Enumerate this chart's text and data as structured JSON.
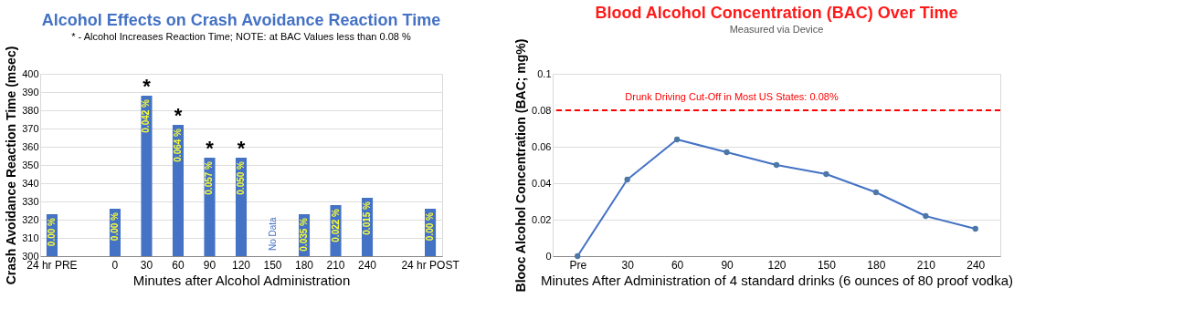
{
  "chart_data": [
    {
      "type": "bar",
      "title": "Alcohol Effects on Crash Avoidance Reaction Time",
      "subtitle": "* - Alcohol Increases Reaction Time; NOTE:  at BAC Values less than 0.08 %",
      "xlabel": "Minutes after Alcohol Administration",
      "ylabel": "Crash Avoidance Reaction Time (msec)",
      "categories": [
        "24 hr PRE",
        null,
        "0",
        "30",
        "60",
        "90",
        "120",
        "150",
        "180",
        "210",
        "240",
        null,
        "24 hr POST"
      ],
      "values": [
        323,
        null,
        326,
        388,
        372,
        354,
        354,
        null,
        323,
        328,
        332,
        null,
        326
      ],
      "color": "#4472c4",
      "ylim": [
        300,
        400
      ],
      "yticks": [
        300,
        310,
        320,
        330,
        340,
        350,
        360,
        370,
        380,
        390,
        400
      ],
      "grid": "y",
      "annotations": [
        {
          "text": "0.00 %",
          "x": "24 hr PRE",
          "y": 323
        },
        {
          "text": "0.00 %",
          "x": "0",
          "y": 326
        },
        {
          "text": "0.042 %",
          "x": "30",
          "y": 388
        },
        {
          "text": "0.064 %",
          "x": "60",
          "y": 372
        },
        {
          "text": "0.057 %",
          "x": "90",
          "y": 354
        },
        {
          "text": "0.050 %",
          "x": "120",
          "y": 354
        },
        "No Data",
        {
          "text": "0.035 %",
          "x": "180",
          "y": 323
        },
        {
          "text": "0.022 %",
          "x": "210",
          "y": 328
        },
        {
          "text": "0.015 %",
          "x": "240",
          "y": 332
        },
        {
          "text": "0.00 %",
          "x": "24 hr POST",
          "y": 326
        },
        {
          "text": "*",
          "x": "30",
          "y": 388
        },
        {
          "text": "*",
          "x": "60",
          "y": 372
        },
        {
          "text": "*",
          "x": "90",
          "y": 354
        },
        {
          "text": "*",
          "x": "120",
          "y": 354
        }
      ]
    },
    {
      "type": "line",
      "title": "Blood Alcohol Concentration (BAC) Over Time",
      "subtitle": "Measured via Device",
      "xlabel": "Minutes After Administration of 4 standard drinks (6 ounces of 80 proof vodka)",
      "ylabel": "Blooc Alcohol Concentration (BAC; mg%)",
      "categories": [
        "Pre",
        "30",
        "60",
        "90",
        "120",
        "150",
        "180",
        "210",
        "240"
      ],
      "values": [
        0,
        0.042,
        0.064,
        0.057,
        0.05,
        0.045,
        0.035,
        0.022,
        0.015
      ],
      "color": "#4472c4",
      "marker": "circle",
      "line_style": "solid",
      "ylim": [
        0,
        0.1
      ],
      "yticks": [
        0,
        0.02,
        0.04,
        0.06,
        0.08,
        0.1
      ],
      "grid": "y",
      "ref_lines": [
        {
          "axis": "y",
          "value": 0.08,
          "label": "Drunk Driving Cut-Off in Most US States:  0.08%",
          "color": "#ff0000",
          "line_style": "dashed"
        }
      ]
    }
  ]
}
